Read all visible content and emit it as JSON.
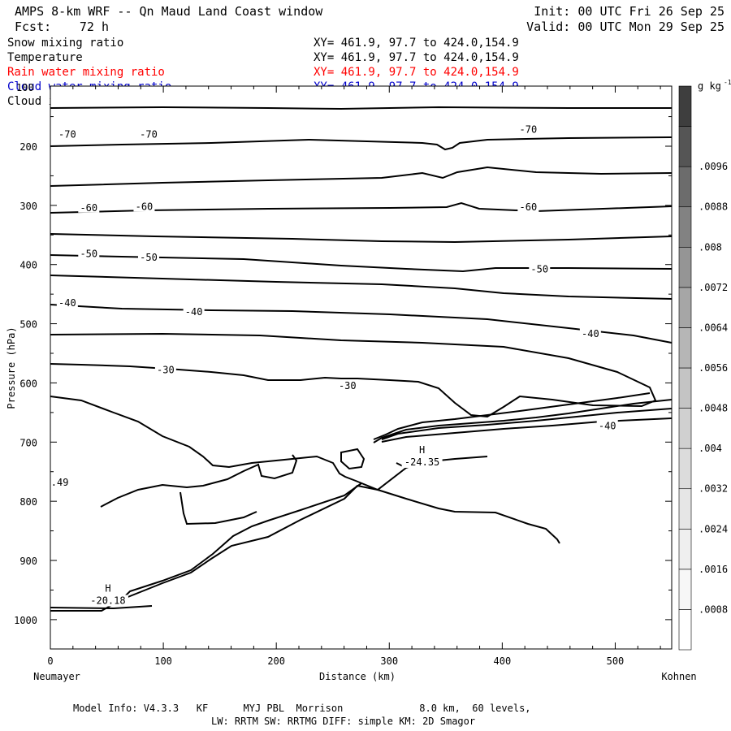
{
  "header": {
    "title": "AMPS 8-km WRF -- Qn Maud Land Coast window",
    "init": "Init: 00 UTC Fri 26 Sep 25",
    "fcst_label": "Fcst:",
    "fcst_value": "72 h",
    "valid": "Valid: 00 UTC Mon 29 Sep 25"
  },
  "variables": [
    {
      "name": "Snow mixing ratio",
      "xy": "XY= 461.9, 97.7 to 424.0,154.9",
      "color": "#000000"
    },
    {
      "name": "Temperature",
      "xy": "XY= 461.9, 97.7 to 424.0,154.9",
      "color": "#000000"
    },
    {
      "name": "Rain water mixing ratio",
      "xy": "XY= 461.9, 97.7 to 424.0,154.9",
      "color": "#ff0000"
    },
    {
      "name": "Cloud water mixing ratio",
      "xy": "XY= 461.9, 97.7 to 424.0,154.9",
      "color": "#0000cc"
    },
    {
      "name": "Cloud ice mixing ratio",
      "xy": "XY= 461.9, 97.7 to 424.0,154.9",
      "color": "#000000"
    }
  ],
  "footer": {
    "line1": "Model Info: V4.3.3   KF      MYJ PBL  Morrison             8.0 km,  60 levels,",
    "line2": "LW: RRTM SW: RRTMG   DIFF: simple KM: 2D Smagor"
  },
  "chart_data": {
    "type": "contour",
    "xlabel": "Distance (km)",
    "ylabel": "Pressure (hPa)",
    "x_start_label": "Neumayer",
    "x_end_label": "Kohnen",
    "xlim": [
      0,
      550
    ],
    "ylim": [
      1050,
      140
    ],
    "xticks": [
      0,
      100,
      200,
      300,
      400,
      500
    ],
    "yticks": [
      200,
      300,
      400,
      500,
      600,
      700,
      800,
      900,
      1000
    ],
    "ytick_labels": [
      "200",
      "300",
      "400",
      "500",
      "600",
      "700",
      "800",
      "900",
      "1000"
    ],
    "top_ytick_label": "100",
    "colorbar": {
      "unit": "g kg",
      "unit_exp": "-1",
      "levels": [
        ".0008",
        ".0016",
        ".0024",
        ".0032",
        ".004",
        ".0048",
        ".0056",
        ".0064",
        ".0072",
        ".008",
        ".0088",
        ".0096"
      ],
      "colors": [
        "#ffffff",
        "#f7f7f7",
        "#efefef",
        "#e6e6e6",
        "#dcdcdc",
        "#d0d0d0",
        "#c4c4c4",
        "#b6b6b6",
        "#a6a6a6",
        "#959595",
        "#828282",
        "#6c6c6c",
        "#555555",
        "#3e3e3e"
      ]
    },
    "isotherm_labels": [
      {
        "text": "-70",
        "x": 15,
        "p": 180
      },
      {
        "text": "-70",
        "x": 87,
        "p": 180
      },
      {
        "text": "-70",
        "x": 423,
        "p": 172
      },
      {
        "text": "-60",
        "x": 34,
        "p": 304
      },
      {
        "text": "-60",
        "x": 83,
        "p": 302
      },
      {
        "text": "-60",
        "x": 423,
        "p": 303
      },
      {
        "text": "-50",
        "x": 34,
        "p": 382
      },
      {
        "text": "-50",
        "x": 87,
        "p": 388
      },
      {
        "text": "-50",
        "x": 433,
        "p": 408
      },
      {
        "text": "-40",
        "x": 15,
        "p": 465
      },
      {
        "text": "-40",
        "x": 127,
        "p": 480
      },
      {
        "text": "-40",
        "x": 478,
        "p": 517
      },
      {
        "text": "-40",
        "x": 493,
        "p": 673
      },
      {
        "text": "-30",
        "x": 102,
        "p": 578
      },
      {
        "text": "-30",
        "x": 263,
        "p": 605
      }
    ],
    "highs": [
      {
        "letter": "H",
        "value": "-20.18",
        "x": 51,
        "p": 961
      },
      {
        "letter": "H",
        "value": "-24.35",
        "x": 329,
        "p": 727
      }
    ],
    "edge_label": {
      "text": ".49",
      "x": 2,
      "p": 768
    },
    "note": "Cross-section Neumayer to Kohnen with temperature isotherms (deg C) and hydrometeor mixing ratio shading"
  }
}
